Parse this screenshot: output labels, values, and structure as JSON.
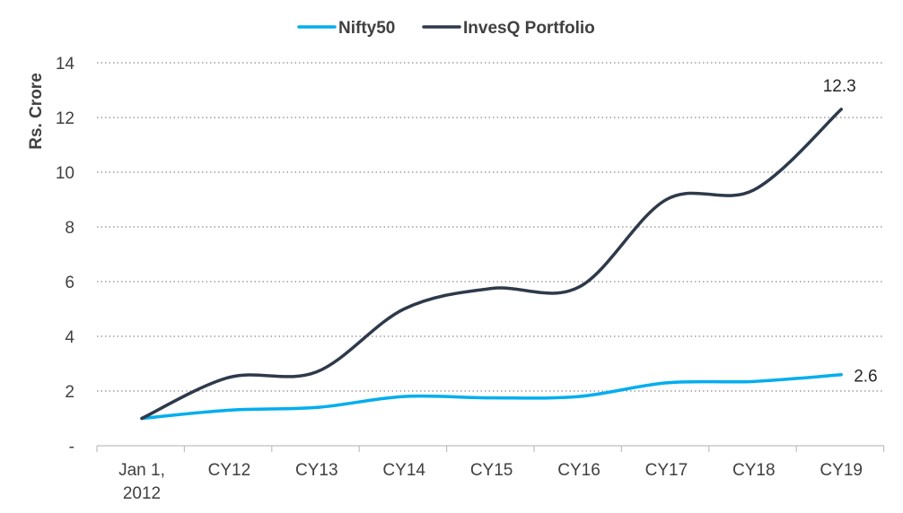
{
  "chart_data": {
    "type": "line",
    "title": "",
    "xlabel": "",
    "ylabel": "Rs. Crore",
    "categories": [
      "Jan 1,\n2012",
      "CY12",
      "CY13",
      "CY14",
      "CY15",
      "CY16",
      "CY17",
      "CY18",
      "CY19"
    ],
    "ylim": [
      0,
      14
    ],
    "yticks": [
      {
        "value": 0,
        "label": "-"
      },
      {
        "value": 2,
        "label": "2"
      },
      {
        "value": 4,
        "label": "4"
      },
      {
        "value": 6,
        "label": "6"
      },
      {
        "value": 8,
        "label": "8"
      },
      {
        "value": 10,
        "label": "10"
      },
      {
        "value": 12,
        "label": "12"
      },
      {
        "value": 14,
        "label": "14"
      }
    ],
    "grid": true,
    "legend_position": "top-center",
    "series": [
      {
        "name": "Nifty50",
        "color": "#00aeef",
        "values": [
          1.0,
          1.3,
          1.4,
          1.8,
          1.75,
          1.8,
          2.3,
          2.35,
          2.6
        ],
        "end_label": "2.6"
      },
      {
        "name": "InvesQ Portfolio",
        "color": "#2e3a4b",
        "values": [
          1.0,
          2.5,
          2.7,
          5.0,
          5.75,
          5.8,
          9.0,
          9.35,
          12.3
        ],
        "end_label": "12.3"
      }
    ]
  }
}
